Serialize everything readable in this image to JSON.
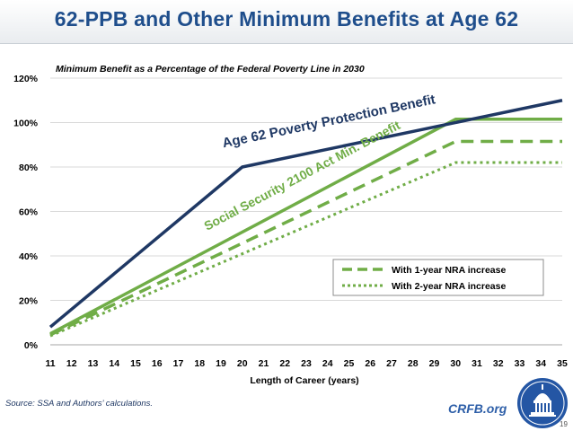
{
  "title": "62-PPB and Other Minimum Benefits at Age 62",
  "source": "Source: SSA and Authors’ calculations.",
  "brand": "CRFB.org",
  "page_number": "19",
  "colors": {
    "title": "#1f4e8c",
    "ppb": "#1f3864",
    "ss2100": "#70ad47",
    "grid": "#d9d9d9"
  },
  "chart_data": {
    "type": "line",
    "title": "Minimum Benefit as a Percentage of the Federal Poverty Line in 2030",
    "xlabel": "Length of Career (years)",
    "ylabel": "",
    "x": [
      11,
      12,
      13,
      14,
      15,
      16,
      17,
      18,
      19,
      20,
      21,
      22,
      23,
      24,
      25,
      26,
      27,
      28,
      29,
      30,
      31,
      32,
      33,
      34,
      35
    ],
    "ylim": [
      0,
      1.2
    ],
    "yticks": [
      0,
      0.2,
      0.4,
      0.6,
      0.8,
      1.0,
      1.2
    ],
    "ytick_labels": [
      "0%",
      "20%",
      "40%",
      "60%",
      "80%",
      "100%",
      "120%"
    ],
    "xtick_labels": [
      "11",
      "12",
      "13",
      "14",
      "15",
      "16",
      "17",
      "18",
      "19",
      "20",
      "21",
      "22",
      "23",
      "24",
      "25",
      "26",
      "27",
      "28",
      "29",
      "30",
      "31",
      "32",
      "33",
      "34",
      "35"
    ],
    "series": [
      {
        "name": "Age 62 Poverty Protection Benefit",
        "style": "solid",
        "color": "#1f3864",
        "points": [
          [
            11,
            0.08
          ],
          [
            20,
            0.8
          ],
          [
            35,
            1.1
          ]
        ]
      },
      {
        "name": "Social Security 2100 Act Min. Benefit",
        "style": "solid",
        "color": "#70ad47",
        "points": [
          [
            11,
            0.05
          ],
          [
            30,
            1.015
          ],
          [
            35,
            1.015
          ]
        ]
      },
      {
        "name": "With 1-year NRA increase",
        "style": "dashed",
        "color": "#70ad47",
        "points": [
          [
            11,
            0.045
          ],
          [
            30,
            0.915
          ],
          [
            35,
            0.915
          ]
        ]
      },
      {
        "name": "With 2-year NRA increase",
        "style": "dotted",
        "color": "#70ad47",
        "points": [
          [
            11,
            0.04
          ],
          [
            30,
            0.82
          ],
          [
            35,
            0.82
          ]
        ]
      }
    ],
    "annotations": [
      {
        "text": "Age 62 Poverty Protection Benefit",
        "series": 0
      },
      {
        "text": "Social Security 2100 Act Min. Benefit",
        "series": 1
      }
    ],
    "legend": {
      "position": "lower-right",
      "entries": [
        "With 1-year NRA increase",
        "With 2-year NRA increase"
      ]
    }
  }
}
